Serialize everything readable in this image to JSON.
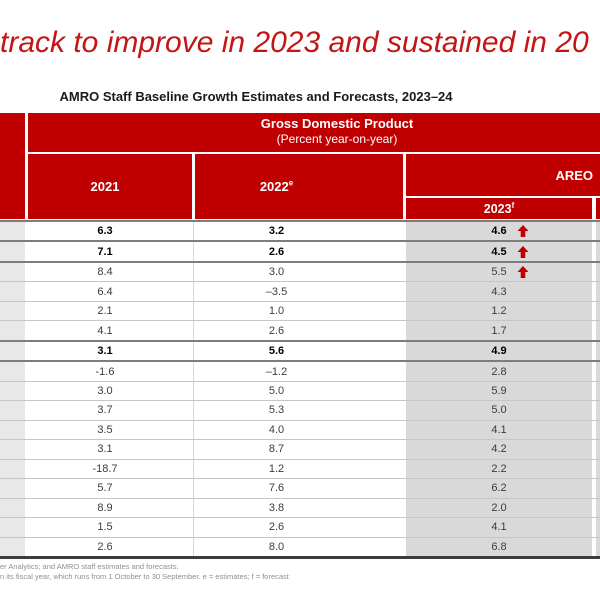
{
  "title": "track to improve in 2023 and sustained in 20",
  "subtitle": "AMRO Staff Baseline Growth Estimates and Forecasts, 2023–24",
  "table": {
    "header": {
      "gdp_title": "Gross Domestic Product",
      "gdp_subtitle": "(Percent year-on-year)",
      "col_2021": {
        "label": "2021",
        "sup": ""
      },
      "col_2022": {
        "label": "2022",
        "sup": "e"
      },
      "areo_label": "AREO",
      "col_2023": {
        "label": "2023",
        "sup": "f"
      }
    },
    "rows": [
      {
        "y2021": "6.3",
        "y2022": "3.2",
        "y2023": "4.6",
        "arrow": true,
        "bold": true,
        "border": "dark"
      },
      {
        "y2021": "7.1",
        "y2022": "2.6",
        "y2023": "4.5",
        "arrow": true,
        "bold": true,
        "border": "dark"
      },
      {
        "y2021": "8.4",
        "y2022": "3.0",
        "y2023": "5.5",
        "arrow": true,
        "bold": false,
        "border": "dark"
      },
      {
        "y2021": "6.4",
        "y2022": "–3.5",
        "y2023": "4.3",
        "arrow": false,
        "bold": false,
        "border": "light"
      },
      {
        "y2021": "2.1",
        "y2022": "1.0",
        "y2023": "1.2",
        "arrow": false,
        "bold": false,
        "border": "light"
      },
      {
        "y2021": "4.1",
        "y2022": "2.6",
        "y2023": "1.7",
        "arrow": false,
        "bold": false,
        "border": "light"
      },
      {
        "y2021": "3.1",
        "y2022": "5.6",
        "y2023": "4.9",
        "arrow": false,
        "bold": true,
        "border": "dark"
      },
      {
        "y2021": "-1.6",
        "y2022": "–1.2",
        "y2023": "2.8",
        "arrow": false,
        "bold": false,
        "border": "dark"
      },
      {
        "y2021": "3.0",
        "y2022": "5.0",
        "y2023": "5.9",
        "arrow": false,
        "bold": false,
        "border": "light"
      },
      {
        "y2021": "3.7",
        "y2022": "5.3",
        "y2023": "5.0",
        "arrow": false,
        "bold": false,
        "border": "light"
      },
      {
        "y2021": "3.5",
        "y2022": "4.0",
        "y2023": "4.1",
        "arrow": false,
        "bold": false,
        "border": "light"
      },
      {
        "y2021": "3.1",
        "y2022": "8.7",
        "y2023": "4.2",
        "arrow": false,
        "bold": false,
        "border": "light"
      },
      {
        "y2021": "-18.7",
        "y2022": "1.2",
        "y2023": "2.2",
        "arrow": false,
        "bold": false,
        "border": "light"
      },
      {
        "y2021": "5.7",
        "y2022": "7.6",
        "y2023": "6.2",
        "arrow": false,
        "bold": false,
        "border": "light"
      },
      {
        "y2021": "8.9",
        "y2022": "3.8",
        "y2023": "2.0",
        "arrow": false,
        "bold": false,
        "border": "light"
      },
      {
        "y2021": "1.5",
        "y2022": "2.6",
        "y2023": "4.1",
        "arrow": false,
        "bold": false,
        "border": "light"
      },
      {
        "y2021": "2.6",
        "y2022": "8.0",
        "y2023": "6.8",
        "arrow": false,
        "bold": false,
        "border": "light"
      }
    ]
  },
  "footnotes": {
    "line1": "er Analytics; and AMRO staff estimates and forecasts.",
    "line2": "n its fiscal year, which runs from 1 October to 30 September. e = estimates; f =  forecast"
  },
  "colors": {
    "table_red": "#C00000",
    "title_red": "#C41414",
    "forecast_col_gray": "#D9D9D9",
    "left_strip_gray": "#E8E8E8",
    "arrow_red": "#C00000"
  }
}
